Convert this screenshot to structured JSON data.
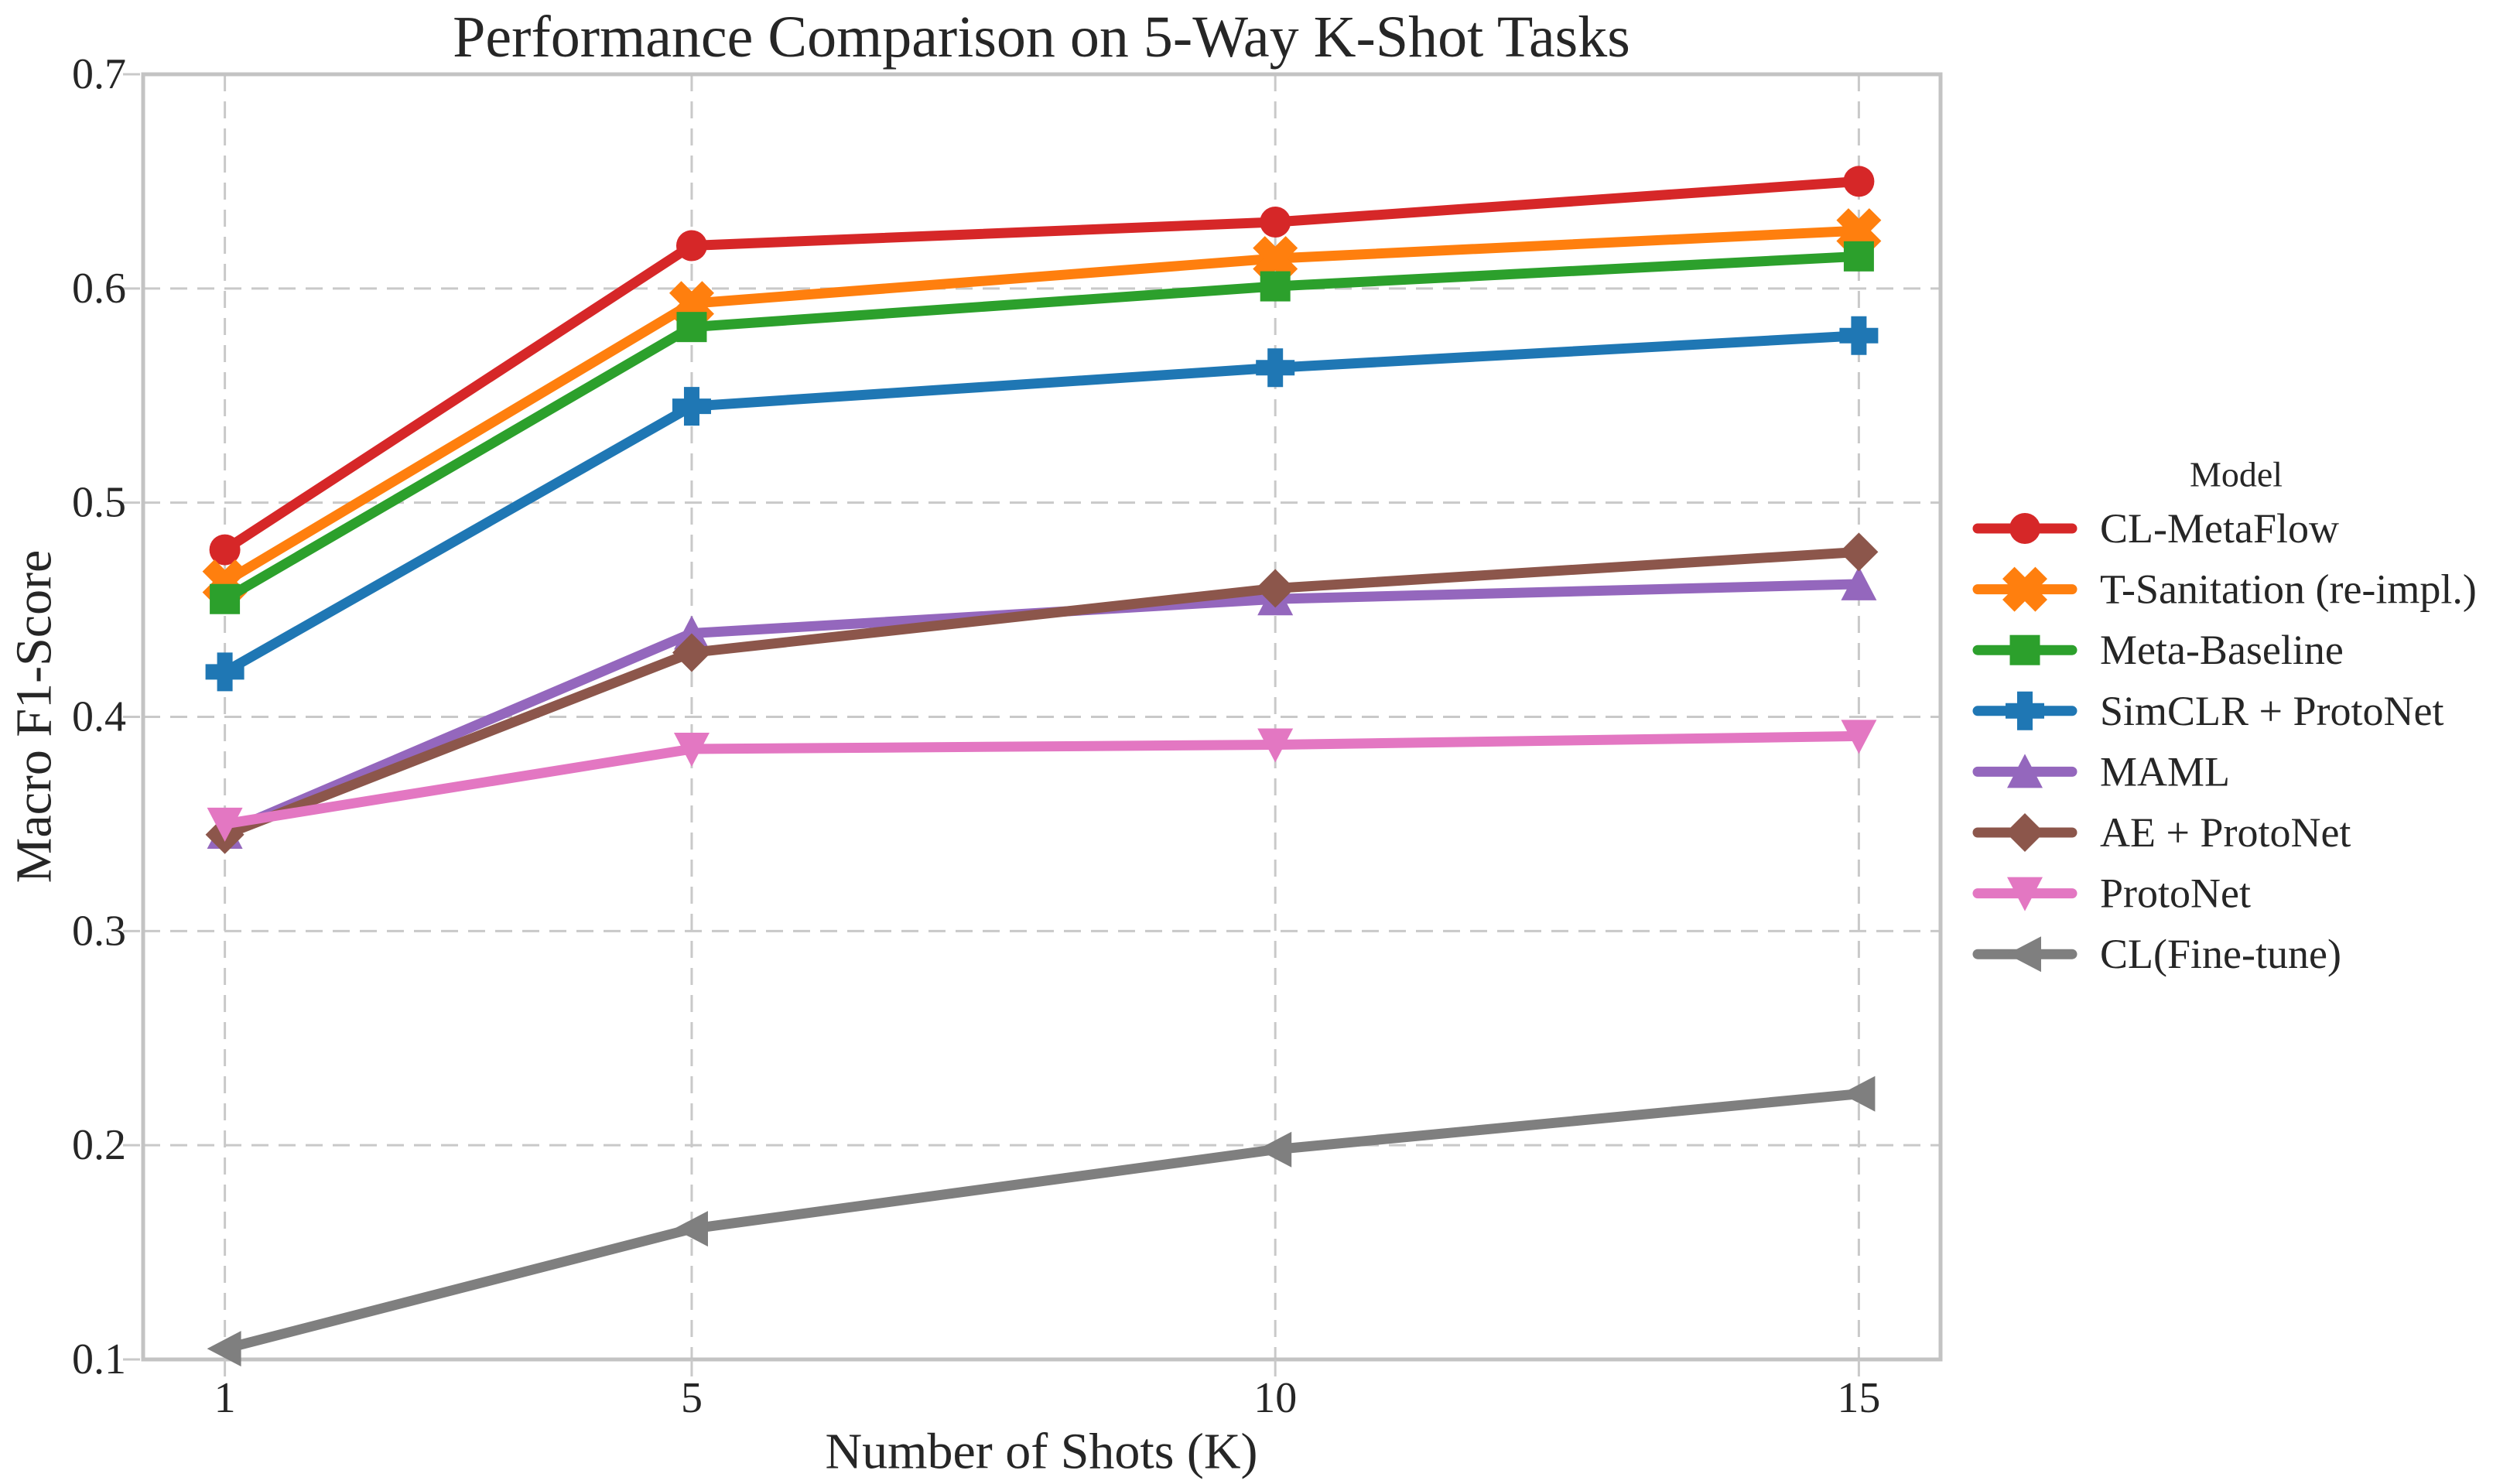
{
  "figure": {
    "background": "#ffffff",
    "text_color": "#262626",
    "grid_color": "#c9c9c9",
    "spine_color": "#c3c3c3"
  },
  "chart_data": {
    "type": "line",
    "title": "Performance Comparison on 5-Way K-Shot Tasks",
    "xlabel": "Number of Shots (K)",
    "ylabel": "Macro F1-Score",
    "x": [
      1,
      5,
      10,
      15
    ],
    "xlim": [
      0.3,
      15.7
    ],
    "ylim": [
      0.1,
      0.7
    ],
    "grid": true,
    "grid_style": "dashed",
    "legend_title": "Model",
    "legend_position": "right",
    "xticks": [
      {
        "value": 1,
        "label": "1"
      },
      {
        "value": 5,
        "label": "5"
      },
      {
        "value": 10,
        "label": "10"
      },
      {
        "value": 15,
        "label": "15"
      }
    ],
    "yticks": [
      {
        "value": 0.1,
        "label": "0.1"
      },
      {
        "value": 0.2,
        "label": "0.2"
      },
      {
        "value": 0.3,
        "label": "0.3"
      },
      {
        "value": 0.4,
        "label": "0.4"
      },
      {
        "value": 0.5,
        "label": "0.5"
      },
      {
        "value": 0.6,
        "label": "0.6"
      },
      {
        "value": 0.7,
        "label": "0.7"
      }
    ],
    "series": [
      {
        "name": "CL-MetaFlow",
        "color": "#d62728",
        "marker": "circle",
        "values": [
          0.478,
          0.62,
          0.631,
          0.65
        ]
      },
      {
        "name": "T-Sanitation (re-impl.)",
        "color": "#ff7f0e",
        "marker": "x-filled",
        "values": [
          0.463,
          0.593,
          0.614,
          0.627
        ]
      },
      {
        "name": "Meta-Baseline",
        "color": "#2ca02c",
        "marker": "square",
        "values": [
          0.455,
          0.582,
          0.601,
          0.615
        ]
      },
      {
        "name": "SimCLR + ProtoNet",
        "color": "#1f77b4",
        "marker": "plus-filled",
        "values": [
          0.421,
          0.545,
          0.563,
          0.578
        ]
      },
      {
        "name": "MAML",
        "color": "#9467bd",
        "marker": "triangle-up",
        "values": [
          0.346,
          0.439,
          0.455,
          0.462
        ]
      },
      {
        "name": "AE + ProtoNet",
        "color": "#8c564b",
        "marker": "diamond",
        "values": [
          0.345,
          0.43,
          0.46,
          0.477
        ]
      },
      {
        "name": "ProtoNet",
        "color": "#e377c2",
        "marker": "triangle-down",
        "values": [
          0.35,
          0.385,
          0.387,
          0.391
        ]
      },
      {
        "name": "CL(Fine-tune)",
        "color": "#7f7f7f",
        "marker": "triangle-left",
        "values": [
          0.105,
          0.161,
          0.198,
          0.224
        ]
      }
    ]
  }
}
